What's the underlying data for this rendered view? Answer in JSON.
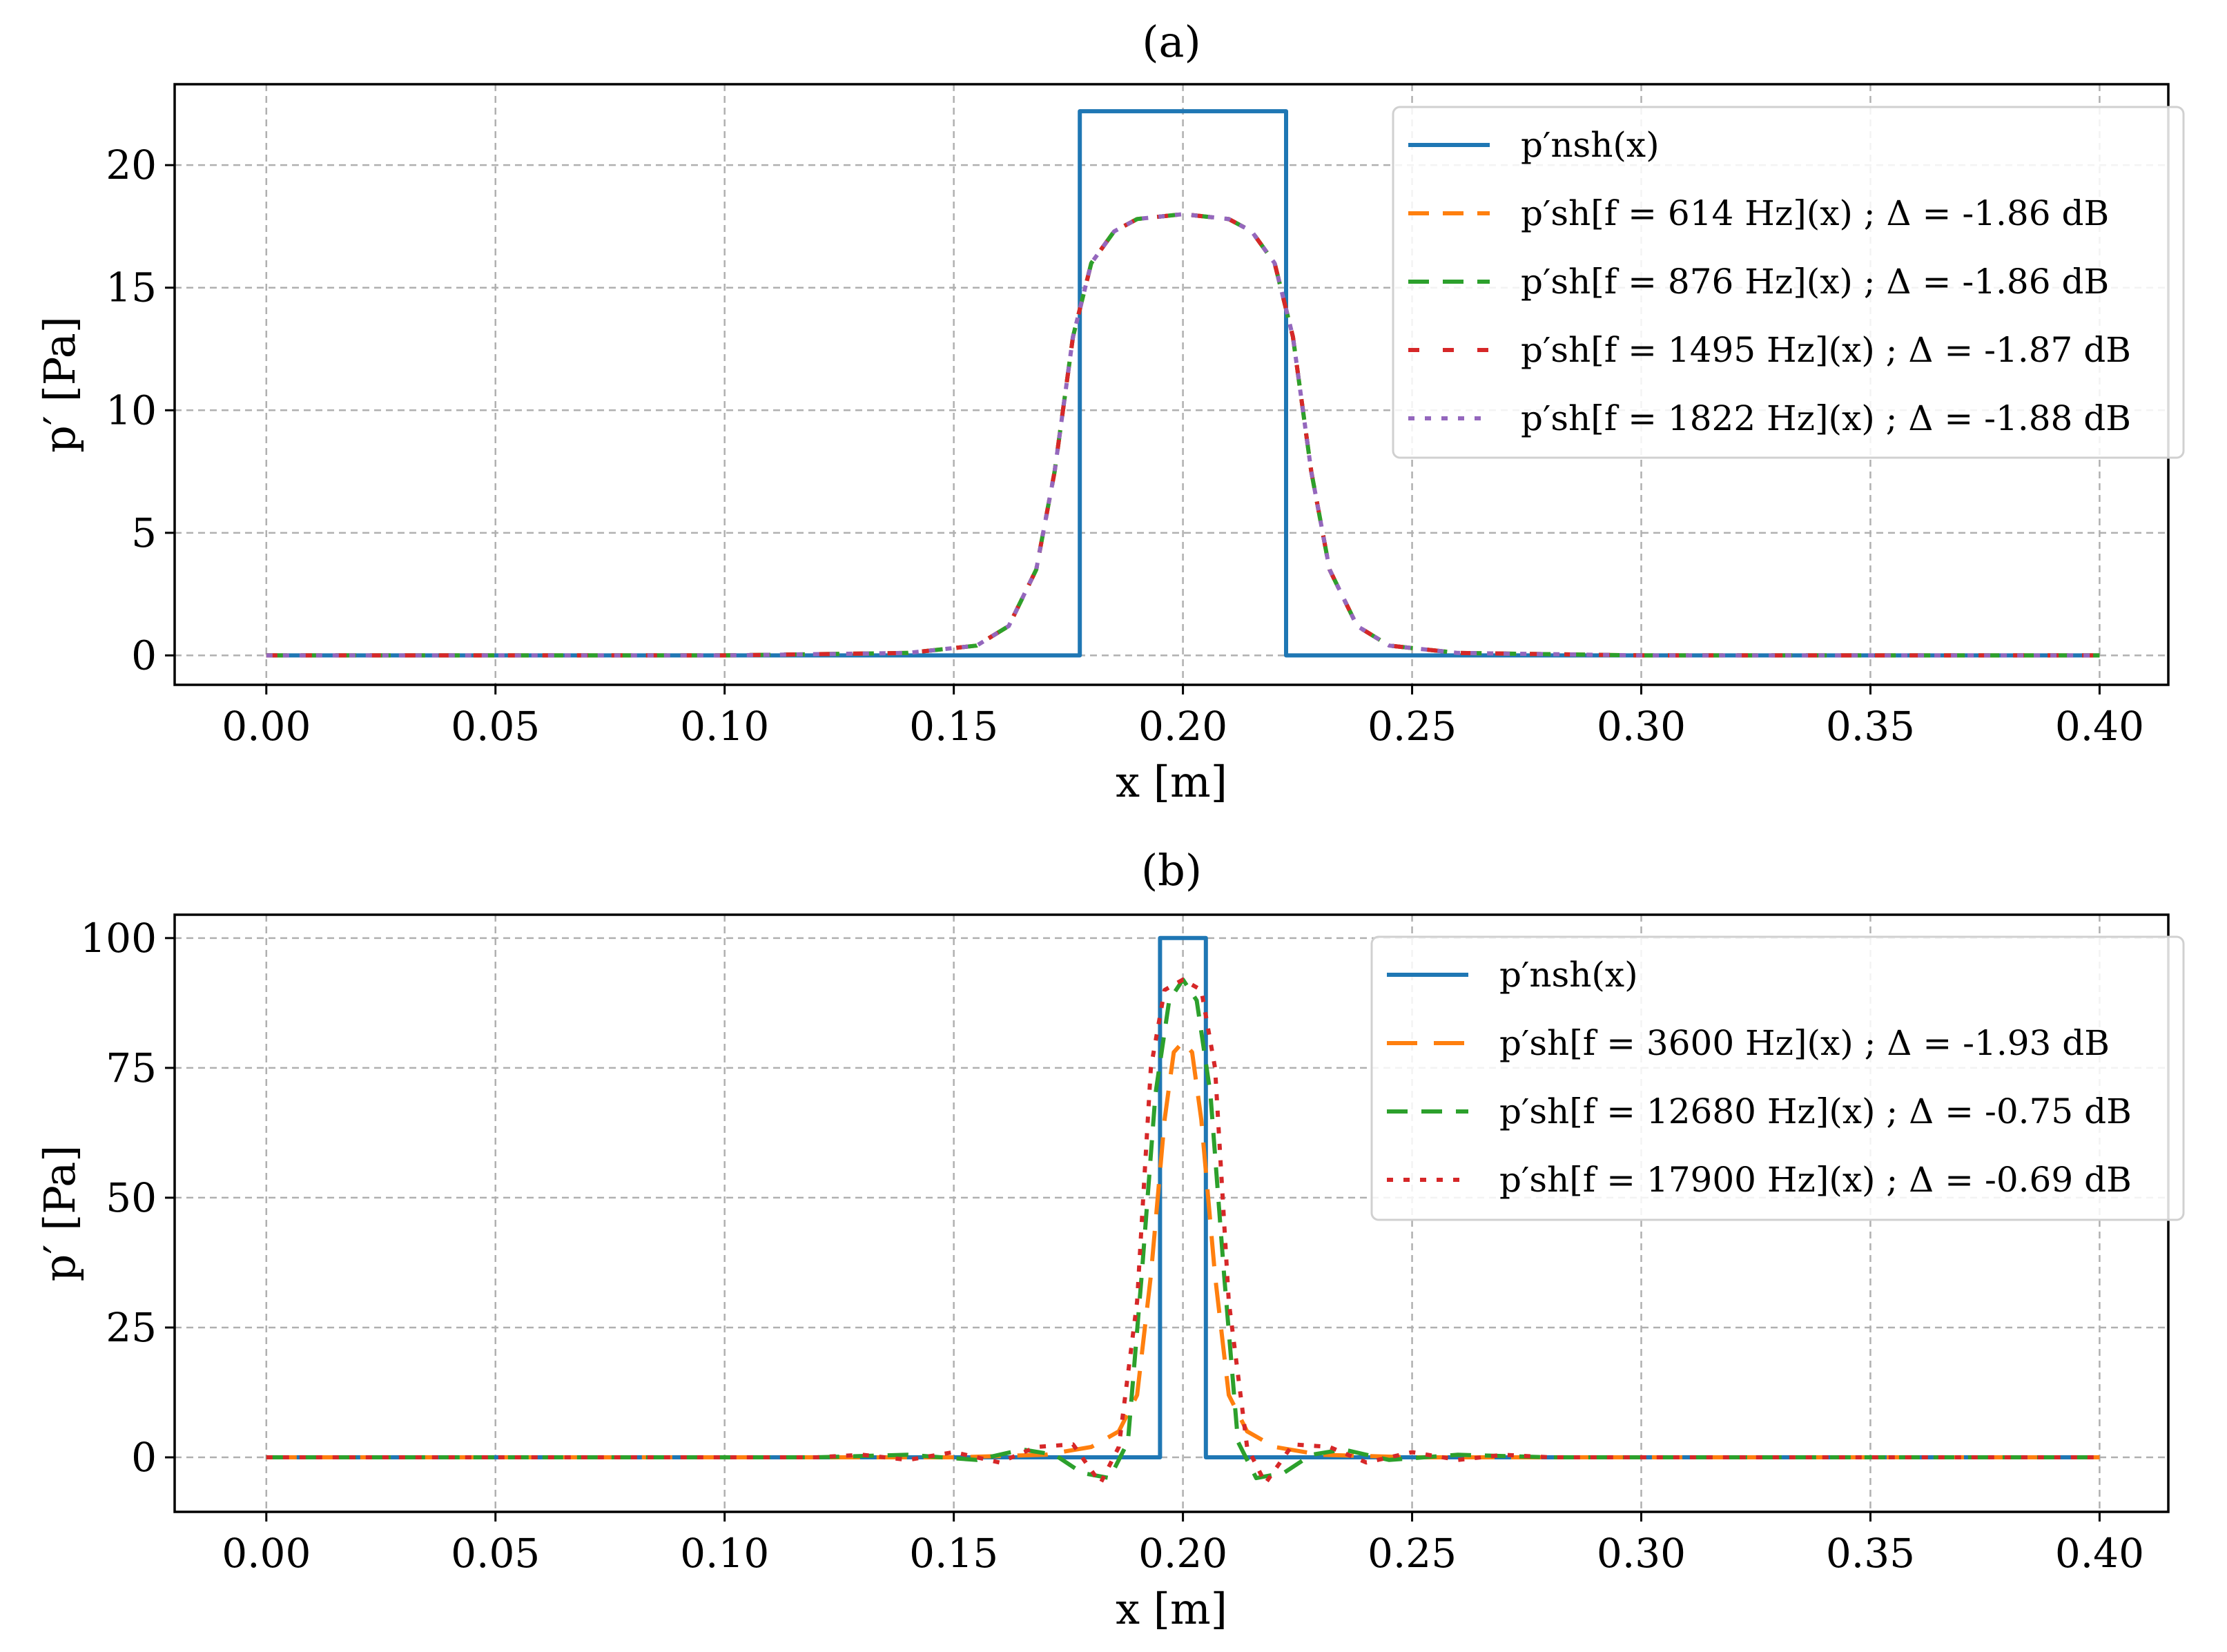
{
  "chart_data": [
    {
      "type": "line",
      "title": "(a)",
      "xlabel": "x [m]",
      "ylabel": "p′ [Pa]",
      "xlim": [
        -0.02,
        0.415
      ],
      "ylim": [
        -1.2,
        23.3
      ],
      "xticks": [
        0.0,
        0.05,
        0.1,
        0.15,
        0.2,
        0.25,
        0.3,
        0.35,
        0.4
      ],
      "xtick_labels": [
        "0.00",
        "0.05",
        "0.10",
        "0.15",
        "0.20",
        "0.25",
        "0.30",
        "0.35",
        "0.40"
      ],
      "yticks": [
        0,
        5,
        10,
        15,
        20
      ],
      "ytick_labels": [
        "0",
        "5",
        "10",
        "15",
        "20"
      ],
      "grid": true,
      "legend_position": "upper-right",
      "series": [
        {
          "name": "p′nsh(x)",
          "color": "#1f77b4",
          "style": "solid",
          "x": [
            0.0,
            0.1775,
            0.1775,
            0.2225,
            0.2225,
            0.4
          ],
          "y": [
            0,
            0,
            22.2,
            22.2,
            0,
            0
          ]
        },
        {
          "name": "p′sh[f = 614 Hz](x) ; Δ = -1.86 dB",
          "color": "#ff7f0e",
          "style": "dash",
          "x": [
            0.0,
            0.1,
            0.14,
            0.155,
            0.162,
            0.168,
            0.172,
            0.176,
            0.18,
            0.185,
            0.19,
            0.2,
            0.21,
            0.215,
            0.22,
            0.224,
            0.228,
            0.232,
            0.238,
            0.245,
            0.26,
            0.3,
            0.4
          ],
          "y": [
            0,
            0,
            0.1,
            0.4,
            1.2,
            3.5,
            7.5,
            13,
            16,
            17.3,
            17.8,
            18,
            17.8,
            17.3,
            16,
            13,
            7.5,
            3.5,
            1.2,
            0.4,
            0.1,
            0,
            0
          ]
        },
        {
          "name": "p′sh[f = 876 Hz](x) ; Δ = -1.86 dB",
          "color": "#2ca02c",
          "style": "dash",
          "x": [
            0.0,
            0.1,
            0.14,
            0.155,
            0.162,
            0.168,
            0.172,
            0.176,
            0.18,
            0.185,
            0.19,
            0.2,
            0.21,
            0.215,
            0.22,
            0.224,
            0.228,
            0.232,
            0.238,
            0.245,
            0.26,
            0.3,
            0.4
          ],
          "y": [
            0,
            0,
            0.1,
            0.4,
            1.2,
            3.5,
            7.5,
            13,
            16,
            17.3,
            17.8,
            18,
            17.8,
            17.3,
            16,
            13,
            7.5,
            3.5,
            1.2,
            0.4,
            0.1,
            0,
            0
          ]
        },
        {
          "name": "p′sh[f = 1495 Hz](x) ; Δ = -1.87 dB",
          "color": "#d62728",
          "style": "dashsparse",
          "x": [
            0.0,
            0.1,
            0.14,
            0.155,
            0.162,
            0.168,
            0.172,
            0.176,
            0.18,
            0.185,
            0.19,
            0.2,
            0.21,
            0.215,
            0.22,
            0.224,
            0.228,
            0.232,
            0.238,
            0.245,
            0.26,
            0.3,
            0.4
          ],
          "y": [
            0,
            0,
            0.1,
            0.4,
            1.2,
            3.5,
            7.5,
            13,
            16,
            17.3,
            17.8,
            18,
            17.8,
            17.3,
            16,
            13,
            7.5,
            3.5,
            1.2,
            0.4,
            0.1,
            0,
            0
          ]
        },
        {
          "name": "p′sh[f = 1822 Hz](x) ; Δ = -1.88 dB",
          "color": "#9467bd",
          "style": "dot",
          "x": [
            0.0,
            0.1,
            0.14,
            0.155,
            0.162,
            0.168,
            0.172,
            0.176,
            0.18,
            0.185,
            0.19,
            0.2,
            0.21,
            0.215,
            0.22,
            0.224,
            0.228,
            0.232,
            0.238,
            0.245,
            0.26,
            0.3,
            0.4
          ],
          "y": [
            0,
            0,
            0.1,
            0.4,
            1.2,
            3.5,
            7.5,
            13,
            16,
            17.3,
            17.8,
            18,
            17.8,
            17.3,
            16,
            13,
            7.5,
            3.5,
            1.2,
            0.4,
            0.1,
            0,
            0
          ]
        }
      ]
    },
    {
      "type": "line",
      "title": "(b)",
      "xlabel": "x [m]",
      "ylabel": "p′ [Pa]",
      "xlim": [
        -0.02,
        0.415
      ],
      "ylim": [
        -10.5,
        104.5
      ],
      "xticks": [
        0.0,
        0.05,
        0.1,
        0.15,
        0.2,
        0.25,
        0.3,
        0.35,
        0.4
      ],
      "xtick_labels": [
        "0.00",
        "0.05",
        "0.10",
        "0.15",
        "0.20",
        "0.25",
        "0.30",
        "0.35",
        "0.40"
      ],
      "yticks": [
        0,
        25,
        50,
        75,
        100
      ],
      "ytick_labels": [
        "0",
        "25",
        "50",
        "75",
        "100"
      ],
      "grid": true,
      "legend_position": "upper-right",
      "series": [
        {
          "name": "p′nsh(x)",
          "color": "#1f77b4",
          "style": "solid",
          "x": [
            0.0,
            0.195,
            0.195,
            0.205,
            0.205,
            0.4
          ],
          "y": [
            0,
            0,
            100,
            100,
            0,
            0
          ]
        },
        {
          "name": "p′sh[f = 3600 Hz](x) ; Δ = -1.93 dB",
          "color": "#ff7f0e",
          "style": "dashlong",
          "x": [
            0.0,
            0.1,
            0.15,
            0.17,
            0.18,
            0.186,
            0.19,
            0.193,
            0.196,
            0.198,
            0.2,
            0.202,
            0.204,
            0.207,
            0.21,
            0.214,
            0.22,
            0.23,
            0.25,
            0.3,
            0.4
          ],
          "y": [
            0,
            0,
            0,
            0.5,
            2,
            5,
            12,
            35,
            65,
            78,
            80,
            78,
            65,
            35,
            12,
            5,
            2,
            0.5,
            0,
            0,
            0
          ]
        },
        {
          "name": "p′sh[f = 12680 Hz](x) ; Δ = -0.75 dB",
          "color": "#2ca02c",
          "style": "dash",
          "x": [
            0.0,
            0.12,
            0.14,
            0.155,
            0.165,
            0.172,
            0.178,
            0.184,
            0.188,
            0.191,
            0.194,
            0.197,
            0.2,
            0.203,
            0.206,
            0.209,
            0.212,
            0.216,
            0.222,
            0.228,
            0.235,
            0.245,
            0.26,
            0.28,
            0.4
          ],
          "y": [
            0,
            0,
            0.5,
            -0.5,
            1.5,
            0.5,
            -3,
            -4,
            3,
            35,
            70,
            88,
            92,
            88,
            70,
            35,
            3,
            -4,
            -3,
            0.5,
            1.5,
            -0.5,
            0.5,
            0,
            0
          ]
        },
        {
          "name": "p′sh[f = 17900 Hz](x) ; Δ = -0.69 dB",
          "color": "#d62728",
          "style": "dot",
          "x": [
            0.0,
            0.12,
            0.13,
            0.14,
            0.15,
            0.16,
            0.168,
            0.176,
            0.182,
            0.186,
            0.19,
            0.193,
            0.196,
            0.2,
            0.204,
            0.207,
            0.21,
            0.214,
            0.218,
            0.224,
            0.232,
            0.24,
            0.25,
            0.26,
            0.27,
            0.28,
            0.4
          ],
          "y": [
            0,
            0,
            0.5,
            -0.5,
            1,
            -1,
            2,
            2.5,
            -5,
            2,
            30,
            75,
            90,
            92,
            90,
            75,
            30,
            2,
            -5,
            2.5,
            2,
            -1,
            1,
            -0.5,
            0.5,
            0,
            0
          ]
        }
      ]
    }
  ]
}
